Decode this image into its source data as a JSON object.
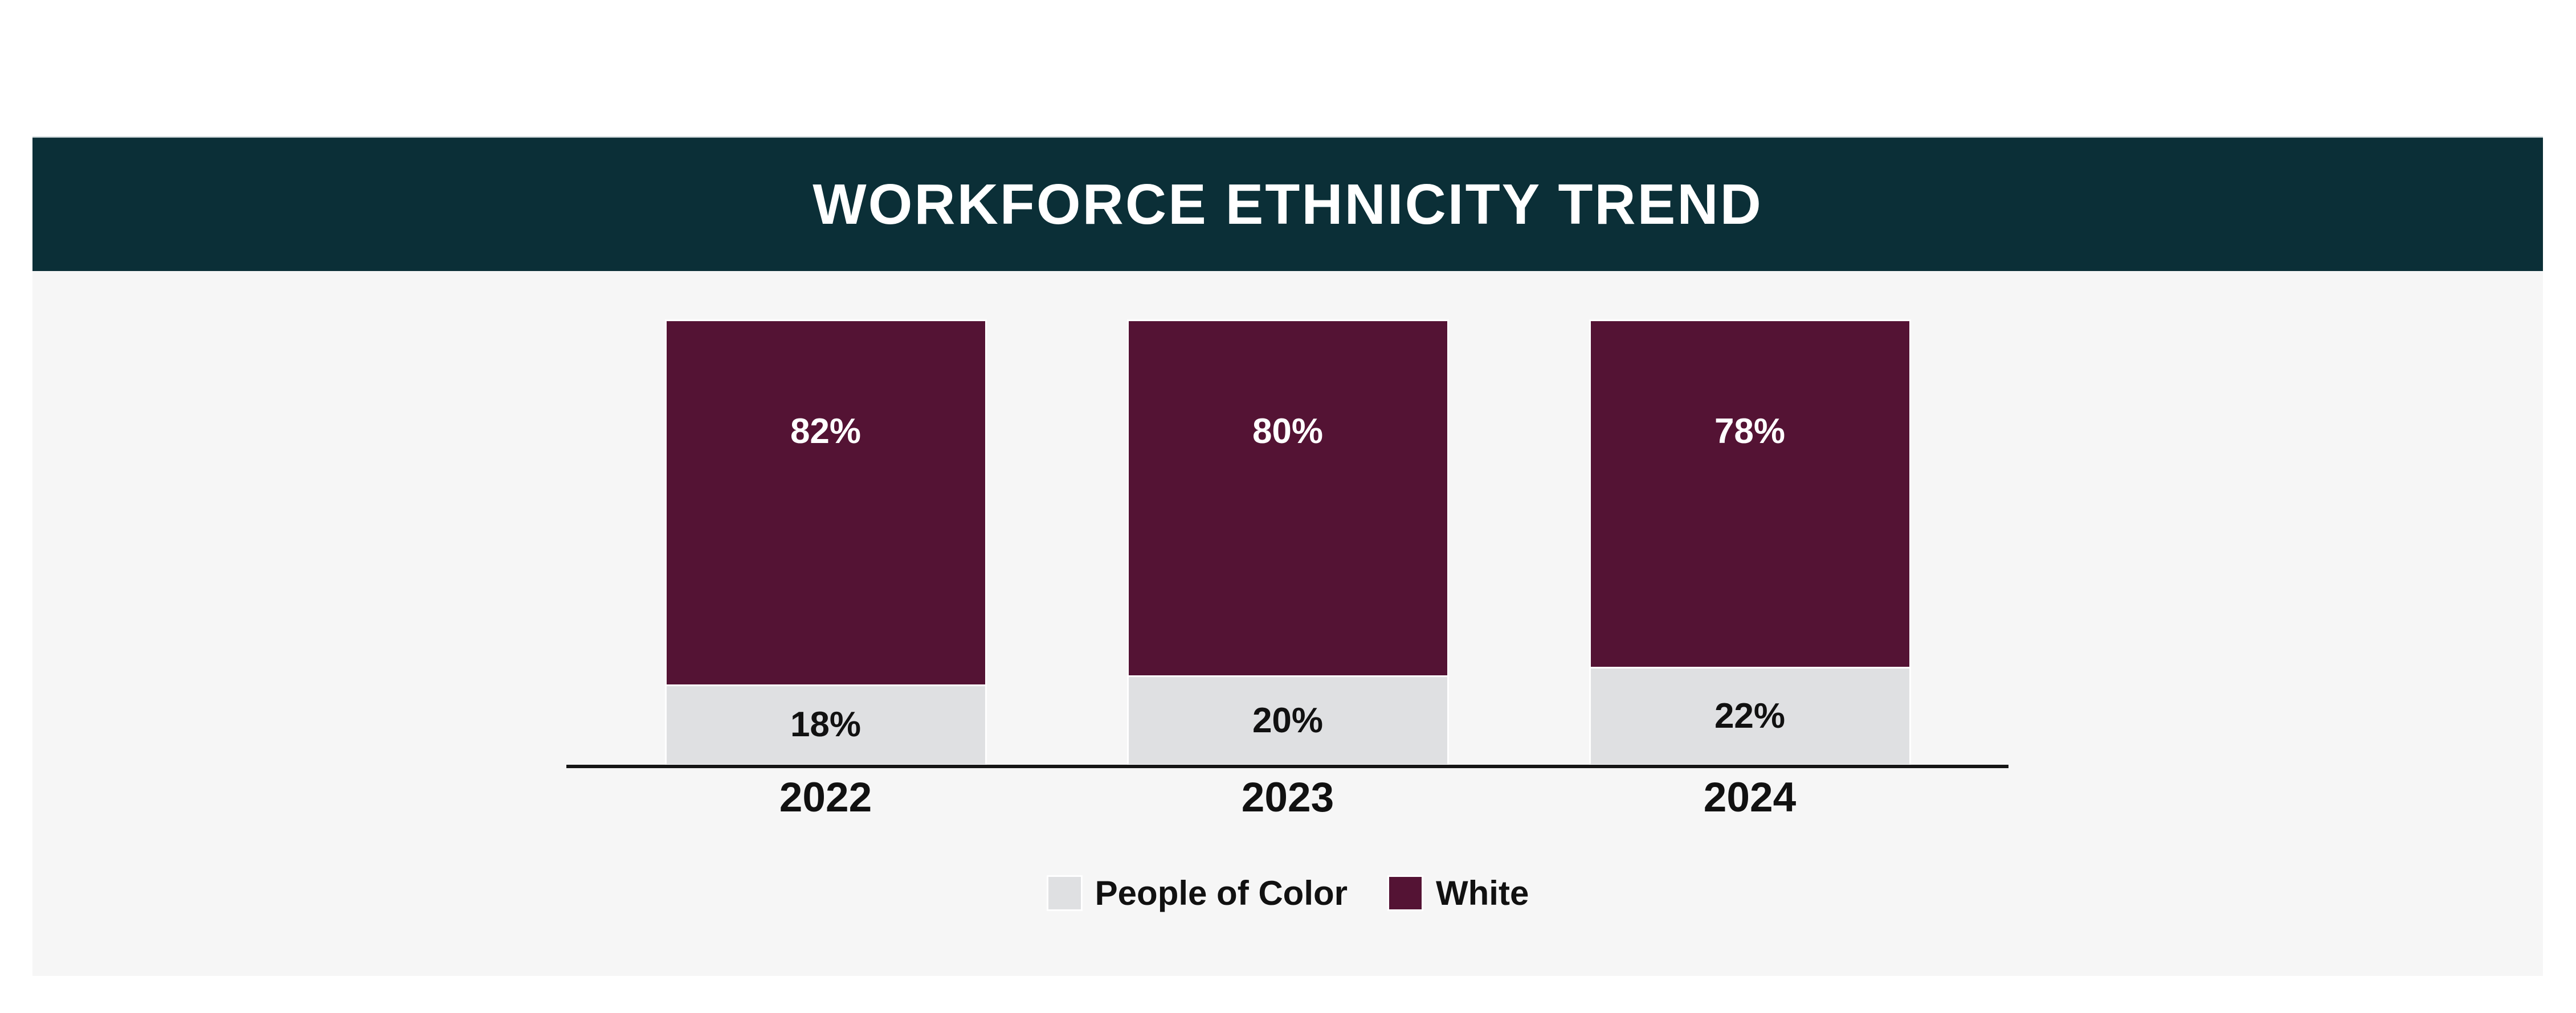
{
  "card": {
    "header_background": "#0b2f37",
    "header_top_border": "#aebcc0",
    "panel_background": "#f6f6f6",
    "page_background": "#ffffff"
  },
  "chart_data": {
    "type": "bar",
    "stacked": true,
    "title": "WORKFORCE ETHNICITY TREND",
    "title_color": "#ffffff",
    "categories": [
      "2022",
      "2023",
      "2024"
    ],
    "series": [
      {
        "name": "White",
        "color": "#541334",
        "label_color": "#ffffff",
        "values": [
          82,
          80,
          78
        ]
      },
      {
        "name": "People of Color",
        "color": "#dfe0e2",
        "label_color": "#111111",
        "values": [
          18,
          20,
          22
        ]
      }
    ],
    "unit": "%",
    "ylim": [
      0,
      100
    ],
    "grid": false,
    "axis_color": "#161616",
    "legend_position": "bottom",
    "legend": [
      {
        "label": "People of Color",
        "color": "#dfe0e2"
      },
      {
        "label": "White",
        "color": "#541334"
      }
    ]
  }
}
